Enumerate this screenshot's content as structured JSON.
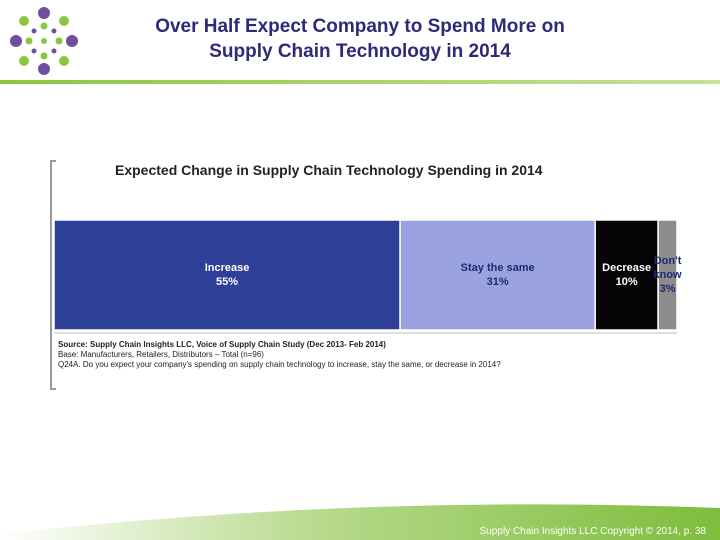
{
  "slide": {
    "title_line1": "Over Half Expect Company to Spend More on",
    "title_line2": "Supply Chain Technology in 2014",
    "footer": "Supply Chain Insights LLC Copyright © 2014, p. 38"
  },
  "chart_data": {
    "type": "bar",
    "orientation": "horizontal-stacked-100",
    "title": "Expected Change in Supply Chain Technology Spending in 2014",
    "categories": [
      "Increase",
      "Stay the same",
      "Decrease",
      "Don't know"
    ],
    "values": [
      55,
      31,
      10,
      3
    ],
    "value_labels": [
      "55%",
      "31%",
      "10%",
      "3%"
    ],
    "colors": [
      "#2d3f96",
      "#9aa3df",
      "#050505",
      "#8c8c8c"
    ],
    "label_colors": [
      "#ffffff",
      "#1c2a70",
      "#ffffff",
      "#1c2a70"
    ],
    "source_line1": "Source:  Supply Chain Insights LLC, Voice of Supply Chain Study (Dec 2013- Feb 2014)",
    "source_line2": "Base:  Manufacturers,  Retailers, Distributors – Total (n=96)",
    "source_line3": "Q24A.  Do you expect your company's spending on supply chain technology to increase, stay the same, or decrease in 2014?"
  },
  "colors": {
    "title": "#2e2a7a",
    "accent_green": "#8cc63f",
    "accent_purple": "#5b3d8f"
  }
}
